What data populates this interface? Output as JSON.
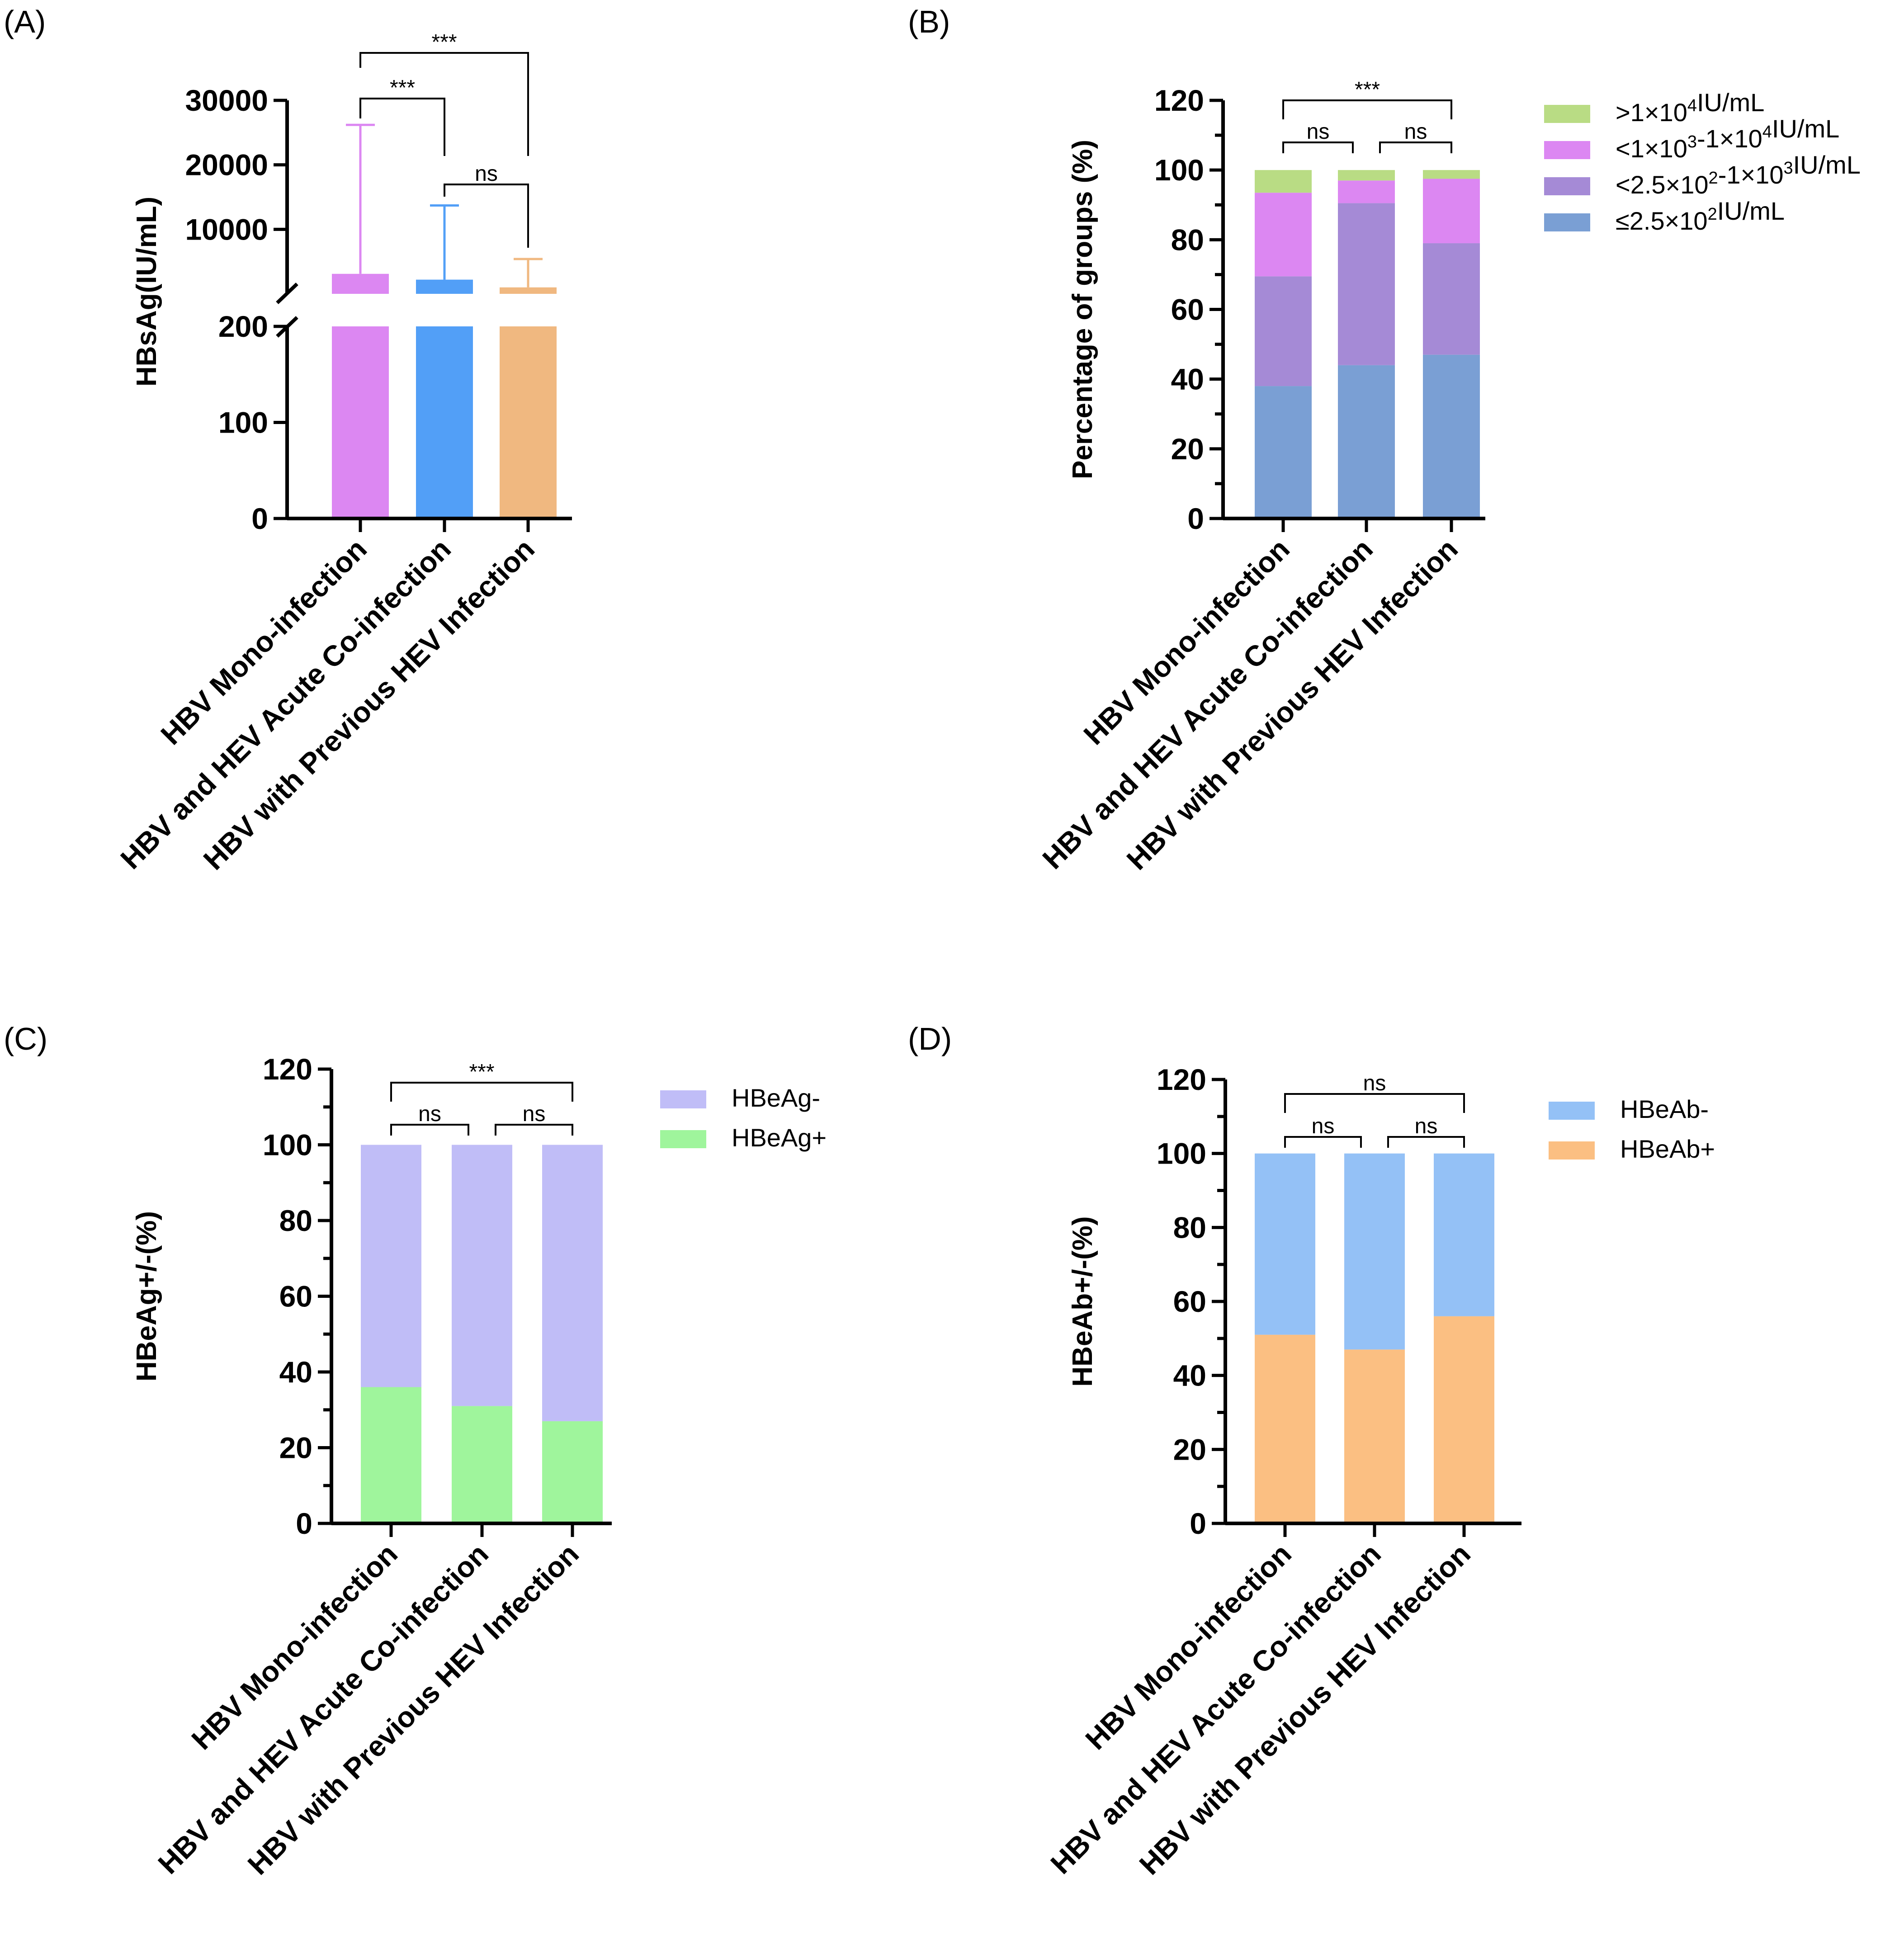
{
  "chart_data": [
    {
      "panel": "(A)",
      "type": "bar",
      "title": "",
      "ylabel": "HBsAg(IU/mL)",
      "categories": [
        "HBV Mono-infection",
        "HBV and HEV Acute Co-infection",
        "HBV with Previous HEV Infection"
      ],
      "y_axis_lower": {
        "range": [
          0,
          200
        ],
        "ticks": [
          "0",
          "100",
          "200"
        ]
      },
      "y_axis_upper": {
        "range": [
          0,
          30000
        ],
        "ticks": [
          "10000",
          "20000",
          "30000"
        ]
      },
      "series": [
        {
          "name": "HBsAg",
          "values": [
            3100,
            2200,
            1000
          ],
          "error_upper": [
            26200,
            13700,
            5400
          ]
        }
      ],
      "colors": [
        "#dc87f2",
        "#529ff7",
        "#f0b880"
      ],
      "significance": [
        {
          "from": 0,
          "to": 1,
          "label": "***"
        },
        {
          "from": 0,
          "to": 2,
          "label": "***"
        },
        {
          "from": 1,
          "to": 2,
          "label": "ns"
        }
      ]
    },
    {
      "panel": "(B)",
      "type": "bar",
      "stacked": true,
      "ylabel": "Percentage of groups (%)",
      "ylim": [
        0,
        120
      ],
      "yticks": [
        "0",
        "20",
        "40",
        "60",
        "80",
        "100",
        "120"
      ],
      "categories": [
        "HBV Mono-infection",
        "HBV and HEV Acute Co-infection",
        "HBV with Previous HEV Infection"
      ],
      "series": [
        {
          "name": "≤2.5×10²IU/mL",
          "label_pre": "≤2.5×10",
          "label_sup": "2",
          "label_post": "IU/mL",
          "values": [
            38,
            44,
            47
          ],
          "color": "#7a9fd4"
        },
        {
          "name": "<2.5×10²-1×10³IU/mL",
          "label_pre": "<2.5×10",
          "label_sup": "2",
          "label_mid": "-1×10",
          "label_sup2": "3",
          "label_post": "IU/mL",
          "values": [
            31.5,
            46.5,
            32
          ],
          "color": "#a58ad6"
        },
        {
          "name": "<1×10³-1×10⁴IU/mL",
          "label_pre": "<1×10",
          "label_sup": "3",
          "label_mid": "-1×10",
          "label_sup2": "4",
          "label_post": "IU/mL",
          "values": [
            24,
            6.5,
            18.5
          ],
          "color": "#dc87f2"
        },
        {
          "name": ">1×10⁴IU/mL",
          "label_pre": ">1×10",
          "label_sup": "4",
          "label_post": "IU/mL",
          "values": [
            6.5,
            3,
            2.5
          ],
          "color": "#b9dc84"
        }
      ],
      "legend_order": [
        3,
        2,
        1,
        0
      ],
      "significance": [
        {
          "from": 0,
          "to": 1,
          "label": "ns"
        },
        {
          "from": 1,
          "to": 2,
          "label": "ns"
        },
        {
          "from": 0,
          "to": 2,
          "label": "***"
        }
      ]
    },
    {
      "panel": "(C)",
      "type": "bar",
      "stacked": true,
      "ylabel": "HBeAg+/-(%)",
      "ylim": [
        0,
        120
      ],
      "yticks": [
        "0",
        "20",
        "40",
        "60",
        "80",
        "100",
        "120"
      ],
      "categories": [
        "HBV Mono-infection",
        "HBV and HEV Acute Co-infection",
        "HBV with Previous HEV Infection"
      ],
      "series": [
        {
          "name": "HBeAg+",
          "values": [
            36,
            31,
            27
          ],
          "color": "#9ff59c"
        },
        {
          "name": "HBeAg-",
          "values": [
            64,
            69,
            73
          ],
          "color": "#c0bdf7"
        }
      ],
      "legend_order": [
        1,
        0
      ],
      "significance": [
        {
          "from": 0,
          "to": 1,
          "label": "ns"
        },
        {
          "from": 1,
          "to": 2,
          "label": "ns"
        },
        {
          "from": 0,
          "to": 2,
          "label": "***"
        }
      ]
    },
    {
      "panel": "(D)",
      "type": "bar",
      "stacked": true,
      "ylabel": "HBeAb+/-(%)",
      "ylim": [
        0,
        120
      ],
      "yticks": [
        "0",
        "20",
        "40",
        "60",
        "80",
        "100",
        "120"
      ],
      "categories": [
        "HBV Mono-infection",
        "HBV and HEV Acute Co-infection",
        "HBV with Previous HEV Infection"
      ],
      "series": [
        {
          "name": "HBeAb+",
          "values": [
            51,
            47,
            56
          ],
          "color": "#fbbf82"
        },
        {
          "name": "HBeAb-",
          "values": [
            49,
            53,
            44
          ],
          "color": "#94c1f6"
        }
      ],
      "legend_order": [
        1,
        0
      ],
      "significance": [
        {
          "from": 0,
          "to": 1,
          "label": "ns"
        },
        {
          "from": 1,
          "to": 2,
          "label": "ns"
        },
        {
          "from": 0,
          "to": 2,
          "label": "ns"
        }
      ]
    }
  ]
}
